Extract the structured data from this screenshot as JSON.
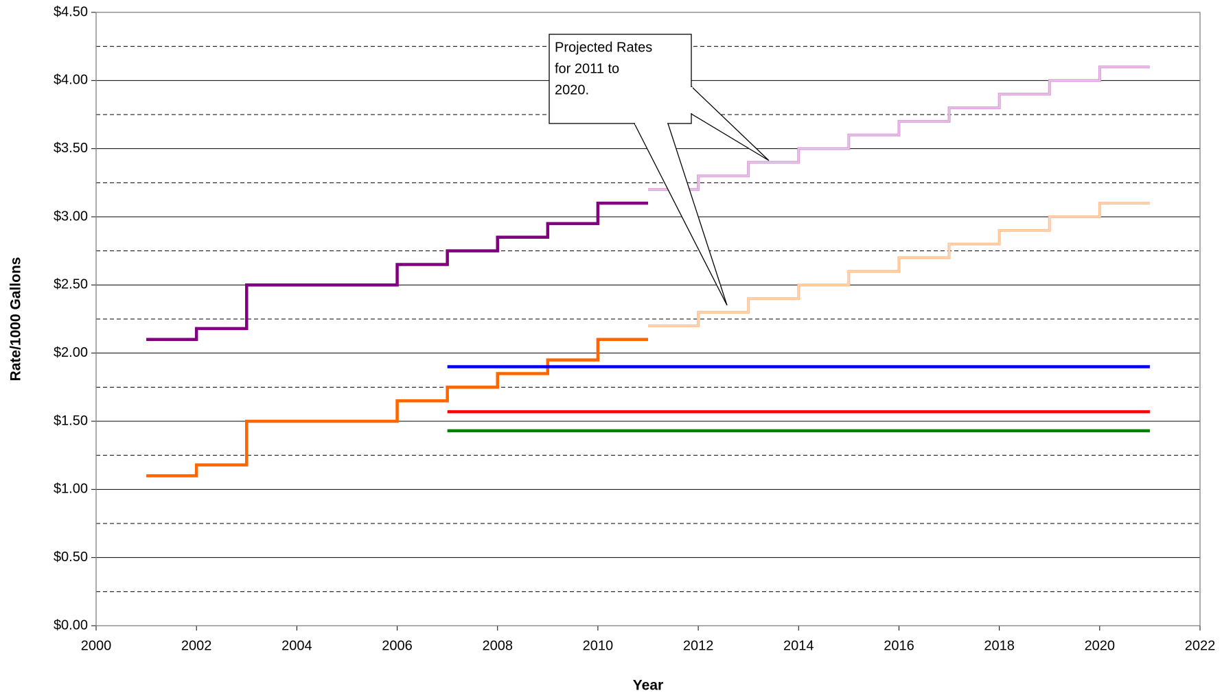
{
  "chart_data": {
    "type": "step",
    "x_label": "Year",
    "y_label": "Rate/1000 Gallons",
    "annotation": [
      "Projected Rates",
      "for 2011 to",
      "2020."
    ],
    "xlim": [
      2000,
      2022
    ],
    "xticks": [
      2000,
      2002,
      2004,
      2006,
      2008,
      2010,
      2012,
      2014,
      2016,
      2018,
      2020,
      2022
    ],
    "ylim": [
      0,
      4.5
    ],
    "yticks": [
      {
        "value": 0,
        "label": "$0.00"
      },
      {
        "value": 0.5,
        "label": "$0.50"
      },
      {
        "value": 1,
        "label": "$1.00"
      },
      {
        "value": 1.5,
        "label": "$1.50"
      },
      {
        "value": 2,
        "label": "$2.00"
      },
      {
        "value": 2.5,
        "label": "$2.50"
      },
      {
        "value": 3,
        "label": "$3.00"
      },
      {
        "value": 3.5,
        "label": "$3.50"
      },
      {
        "value": 4,
        "label": "$4.00"
      },
      {
        "value": 4.5,
        "label": "$4.50"
      }
    ],
    "minor_yticks": [
      0.25,
      0.75,
      1.25,
      1.75,
      2.25,
      2.75,
      3.25,
      3.75,
      4.25
    ],
    "grid": true,
    "series": [
      {
        "color": "#800080",
        "style": "solid",
        "x": [
          2001,
          2002,
          2003,
          2004,
          2005,
          2006,
          2007,
          2008,
          2009,
          2010,
          2011
        ],
        "values": [
          2.1,
          2.18,
          2.5,
          2.5,
          2.5,
          2.65,
          2.75,
          2.85,
          2.95,
          3.1,
          3.1
        ]
      },
      {
        "color": "#d9a0d9",
        "style": "projected",
        "x": [
          2011,
          2012,
          2013,
          2014,
          2015,
          2016,
          2017,
          2018,
          2019,
          2020,
          2021
        ],
        "values": [
          3.2,
          3.3,
          3.4,
          3.5,
          3.6,
          3.7,
          3.8,
          3.9,
          4.0,
          4.1,
          4.1
        ]
      },
      {
        "color": "#ff6600",
        "style": "solid",
        "x": [
          2001,
          2002,
          2003,
          2004,
          2005,
          2006,
          2007,
          2008,
          2009,
          2010,
          2011
        ],
        "values": [
          1.1,
          1.18,
          1.5,
          1.5,
          1.5,
          1.65,
          1.75,
          1.85,
          1.95,
          2.1,
          2.1
        ]
      },
      {
        "color": "#ffc090",
        "style": "projected",
        "x": [
          2011,
          2012,
          2013,
          2014,
          2015,
          2016,
          2017,
          2018,
          2019,
          2020,
          2021
        ],
        "values": [
          2.2,
          2.3,
          2.4,
          2.5,
          2.6,
          2.7,
          2.8,
          2.9,
          3.0,
          3.1,
          3.1
        ]
      },
      {
        "color": "#0000ff",
        "style": "solid",
        "x": [
          2007,
          2021
        ],
        "values": [
          1.9,
          1.9
        ]
      },
      {
        "color": "#ff0000",
        "style": "solid",
        "x": [
          2007,
          2021
        ],
        "values": [
          1.57,
          1.57
        ]
      },
      {
        "color": "#008000",
        "style": "solid",
        "x": [
          2007,
          2021
        ],
        "values": [
          1.43,
          1.43
        ]
      }
    ]
  }
}
